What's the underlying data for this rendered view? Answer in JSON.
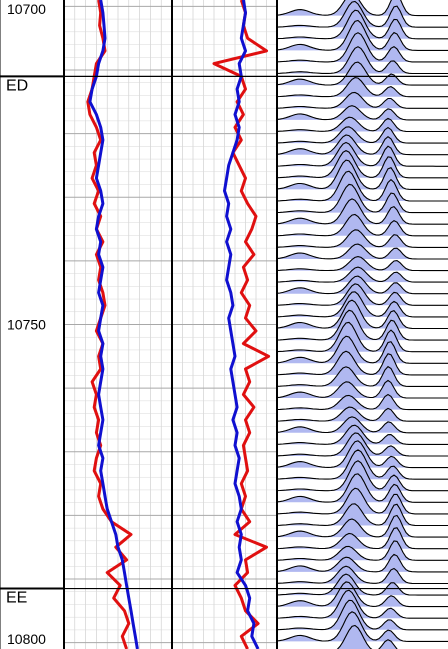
{
  "chart_data": {
    "type": "line",
    "y_axis": {
      "label": "",
      "ylim": [
        10699,
        10801
      ],
      "inverted": true,
      "tick_labels": [
        "10700",
        "10750",
        "10800"
      ]
    },
    "formation_tops": [
      {
        "name": "ED",
        "depth": 10711
      },
      {
        "name": "EE",
        "depth": 10791.5
      }
    ],
    "tracks": [
      {
        "name": "",
        "series": [
          {
            "name": "",
            "color": "#e01010",
            "depth": [
              10699,
              10701,
              10703,
              10705,
              10707,
              10709,
              10711,
              10713,
              10715,
              10717,
              10719,
              10721,
              10723,
              10725,
              10727,
              10729,
              10731,
              10733,
              10735,
              10737,
              10739,
              10741,
              10743,
              10745,
              10747,
              10749,
              10751,
              10753,
              10755,
              10757,
              10759,
              10761,
              10763,
              10765,
              10767,
              10769,
              10771,
              10773,
              10775,
              10777,
              10779,
              10781,
              10783,
              10785,
              10787,
              10789,
              10791,
              10793,
              10795,
              10797,
              10799,
              10801
            ],
            "value": [
              0.32,
              0.34,
              0.33,
              0.36,
              0.38,
              0.3,
              0.28,
              0.26,
              0.22,
              0.24,
              0.3,
              0.34,
              0.28,
              0.3,
              0.26,
              0.32,
              0.28,
              0.34,
              0.3,
              0.36,
              0.3,
              0.34,
              0.32,
              0.36,
              0.38,
              0.34,
              0.3,
              0.36,
              0.32,
              0.34,
              0.26,
              0.3,
              0.28,
              0.32,
              0.3,
              0.34,
              0.3,
              0.28,
              0.34,
              0.32,
              0.36,
              0.44,
              0.62,
              0.48,
              0.58,
              0.4,
              0.52,
              0.46,
              0.56,
              0.6,
              0.54,
              0.58
            ]
          },
          {
            "name": "",
            "color": "#1010d0",
            "depth": [
              10699,
              10701,
              10703,
              10705,
              10707,
              10709,
              10711,
              10713,
              10715,
              10717,
              10719,
              10721,
              10723,
              10725,
              10727,
              10729,
              10731,
              10733,
              10735,
              10737,
              10739,
              10741,
              10743,
              10745,
              10747,
              10749,
              10751,
              10753,
              10755,
              10757,
              10759,
              10761,
              10763,
              10765,
              10767,
              10769,
              10771,
              10773,
              10775,
              10777,
              10779,
              10781,
              10783,
              10785,
              10787,
              10789,
              10791,
              10793,
              10795,
              10797,
              10799,
              10801
            ],
            "value": [
              0.34,
              0.36,
              0.37,
              0.38,
              0.36,
              0.32,
              0.3,
              0.26,
              0.24,
              0.3,
              0.34,
              0.36,
              0.34,
              0.32,
              0.3,
              0.34,
              0.36,
              0.32,
              0.3,
              0.34,
              0.32,
              0.36,
              0.34,
              0.32,
              0.36,
              0.34,
              0.32,
              0.36,
              0.34,
              0.36,
              0.34,
              0.32,
              0.34,
              0.36,
              0.34,
              0.32,
              0.36,
              0.34,
              0.36,
              0.38,
              0.4,
              0.44,
              0.48,
              0.5,
              0.54,
              0.56,
              0.58,
              0.6,
              0.62,
              0.64,
              0.66,
              0.68
            ]
          }
        ]
      },
      {
        "name": "",
        "series": [
          {
            "name": "",
            "color": "#e01010",
            "depth": [
              10699,
              10701,
              10703,
              10705,
              10707,
              10709,
              10711,
              10713,
              10715,
              10717,
              10719,
              10721,
              10723,
              10725,
              10727,
              10729,
              10731,
              10733,
              10735,
              10737,
              10739,
              10741,
              10743,
              10745,
              10747,
              10749,
              10751,
              10753,
              10755,
              10757,
              10759,
              10761,
              10763,
              10765,
              10767,
              10769,
              10771,
              10773,
              10775,
              10777,
              10779,
              10781,
              10783,
              10785,
              10787,
              10789,
              10791,
              10793,
              10795,
              10797,
              10799,
              10801
            ],
            "value": [
              0.66,
              0.7,
              0.68,
              0.72,
              0.9,
              0.4,
              0.66,
              0.7,
              0.62,
              0.68,
              0.6,
              0.66,
              0.58,
              0.64,
              0.7,
              0.66,
              0.72,
              0.8,
              0.76,
              0.7,
              0.78,
              0.68,
              0.72,
              0.66,
              0.74,
              0.7,
              0.8,
              0.68,
              0.92,
              0.7,
              0.74,
              0.68,
              0.78,
              0.7,
              0.74,
              0.68,
              0.7,
              0.72,
              0.66,
              0.7,
              0.66,
              0.74,
              0.6,
              0.9,
              0.7,
              0.72,
              0.6,
              0.66,
              0.7,
              0.82,
              0.66,
              0.72
            ]
          },
          {
            "name": "",
            "color": "#1010d0",
            "depth": [
              10699,
              10701,
              10703,
              10705,
              10707,
              10709,
              10711,
              10713,
              10715,
              10717,
              10719,
              10721,
              10723,
              10725,
              10727,
              10729,
              10731,
              10733,
              10735,
              10737,
              10739,
              10741,
              10743,
              10745,
              10747,
              10749,
              10751,
              10753,
              10755,
              10757,
              10759,
              10761,
              10763,
              10765,
              10767,
              10769,
              10771,
              10773,
              10775,
              10777,
              10779,
              10781,
              10783,
              10785,
              10787,
              10789,
              10791,
              10793,
              10795,
              10797,
              10799,
              10801
            ],
            "value": [
              0.68,
              0.7,
              0.68,
              0.66,
              0.7,
              0.64,
              0.66,
              0.62,
              0.64,
              0.6,
              0.64,
              0.62,
              0.58,
              0.54,
              0.52,
              0.5,
              0.54,
              0.52,
              0.56,
              0.52,
              0.56,
              0.54,
              0.52,
              0.56,
              0.58,
              0.54,
              0.56,
              0.58,
              0.6,
              0.56,
              0.58,
              0.6,
              0.62,
              0.58,
              0.62,
              0.6,
              0.64,
              0.62,
              0.6,
              0.64,
              0.66,
              0.62,
              0.66,
              0.64,
              0.66,
              0.62,
              0.7,
              0.74,
              0.72,
              0.78,
              0.76,
              0.82
            ]
          }
        ]
      },
      {
        "name": "",
        "type": "wiggle",
        "fill_color": "#b0b8f0",
        "line_color": "#000000",
        "trace_count": 56
      }
    ],
    "grid": true,
    "legend": "none"
  }
}
